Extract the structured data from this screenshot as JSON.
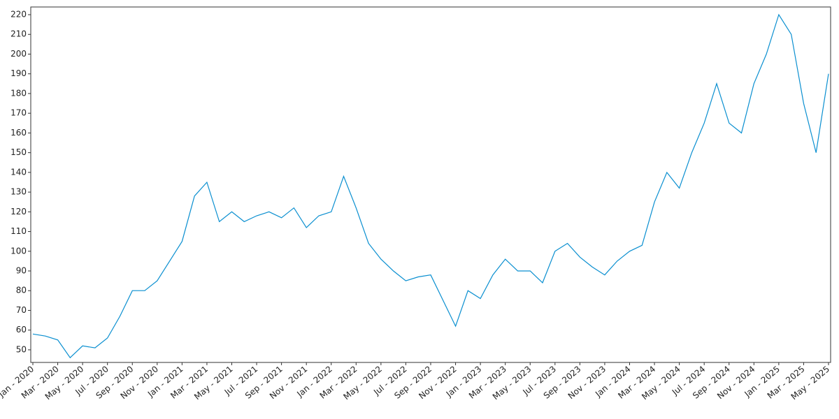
{
  "chart_data": {
    "type": "line",
    "x": [
      "2020-01",
      "2020-02",
      "2020-03",
      "2020-04",
      "2020-05",
      "2020-06",
      "2020-07",
      "2020-08",
      "2020-09",
      "2020-10",
      "2020-11",
      "2020-12",
      "2021-01",
      "2021-02",
      "2021-03",
      "2021-04",
      "2021-05",
      "2021-06",
      "2021-07",
      "2021-08",
      "2021-09",
      "2021-10",
      "2021-11",
      "2021-12",
      "2022-01",
      "2022-02",
      "2022-03",
      "2022-04",
      "2022-05",
      "2022-06",
      "2022-07",
      "2022-08",
      "2022-09",
      "2022-10",
      "2022-11",
      "2022-12",
      "2023-01",
      "2023-02",
      "2023-03",
      "2023-04",
      "2023-05",
      "2023-06",
      "2023-07",
      "2023-08",
      "2023-09",
      "2023-10",
      "2023-11",
      "2023-12",
      "2024-01",
      "2024-02",
      "2024-03",
      "2024-04",
      "2024-05",
      "2024-06",
      "2024-07",
      "2024-08",
      "2024-09",
      "2024-10",
      "2024-11",
      "2024-12",
      "2025-01",
      "2025-02",
      "2025-03",
      "2025-04",
      "2025-05"
    ],
    "values": [
      58,
      57,
      55,
      46,
      52,
      51,
      56,
      67,
      80,
      80,
      85,
      95,
      105,
      128,
      135,
      115,
      120,
      115,
      118,
      120,
      117,
      122,
      112,
      118,
      120,
      138,
      122,
      104,
      96,
      90,
      85,
      87,
      88,
      75,
      62,
      80,
      76,
      88,
      96,
      90,
      90,
      84,
      100,
      104,
      97,
      92,
      88,
      95,
      100,
      103,
      125,
      140,
      132,
      150,
      165,
      185,
      165,
      160,
      185,
      200,
      220,
      210,
      175,
      150,
      190
    ],
    "color": "#0a8fd0",
    "xlim": [
      "2020-01",
      "2025-05"
    ],
    "xticks": [
      {
        "value": "2020-01",
        "label": "Jan - 2020"
      },
      {
        "value": "2020-03",
        "label": "Mar - 2020"
      },
      {
        "value": "2020-05",
        "label": "May - 2020"
      },
      {
        "value": "2020-07",
        "label": "Jul - 2020"
      },
      {
        "value": "2020-09",
        "label": "Sep - 2020"
      },
      {
        "value": "2020-11",
        "label": "Nov - 2020"
      },
      {
        "value": "2021-01",
        "label": "Jan - 2021"
      },
      {
        "value": "2021-03",
        "label": "Mar - 2021"
      },
      {
        "value": "2021-05",
        "label": "May - 2021"
      },
      {
        "value": "2021-07",
        "label": "Jul - 2021"
      },
      {
        "value": "2021-09",
        "label": "Sep - 2021"
      },
      {
        "value": "2021-11",
        "label": "Nov - 2021"
      },
      {
        "value": "2022-01",
        "label": "Jan - 2022"
      },
      {
        "value": "2022-03",
        "label": "Mar - 2022"
      },
      {
        "value": "2022-05",
        "label": "May - 2022"
      },
      {
        "value": "2022-07",
        "label": "Jul - 2022"
      },
      {
        "value": "2022-09",
        "label": "Sep - 2022"
      },
      {
        "value": "2022-11",
        "label": "Nov - 2022"
      },
      {
        "value": "2023-01",
        "label": "Jan - 2023"
      },
      {
        "value": "2023-03",
        "label": "Mar - 2023"
      },
      {
        "value": "2023-05",
        "label": "May - 2023"
      },
      {
        "value": "2023-07",
        "label": "Jul - 2023"
      },
      {
        "value": "2023-09",
        "label": "Sep - 2023"
      },
      {
        "value": "2023-11",
        "label": "Nov - 2023"
      },
      {
        "value": "2024-01",
        "label": "Jan - 2024"
      },
      {
        "value": "2024-03",
        "label": "Mar - 2024"
      },
      {
        "value": "2024-05",
        "label": "May - 2024"
      },
      {
        "value": "2024-07",
        "label": "Jul - 2024"
      },
      {
        "value": "2024-09",
        "label": "Sep - 2024"
      },
      {
        "value": "2024-11",
        "label": "Nov - 2024"
      },
      {
        "value": "2025-01",
        "label": "Jan - 2025"
      },
      {
        "value": "2025-03",
        "label": "Mar - 2025"
      },
      {
        "value": "2025-05",
        "label": "May - 2025"
      }
    ],
    "ylim": [
      43.6,
      223.9
    ],
    "yticks": [
      50,
      60,
      70,
      80,
      90,
      100,
      110,
      120,
      130,
      140,
      150,
      160,
      170,
      180,
      190,
      200,
      210,
      220
    ]
  }
}
